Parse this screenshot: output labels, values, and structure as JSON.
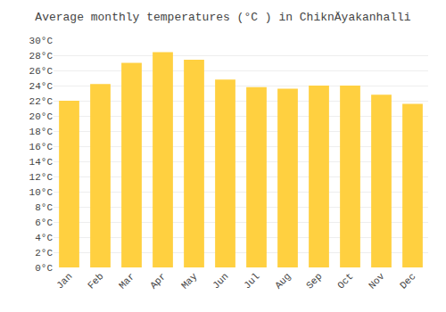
{
  "chart_data": {
    "type": "bar",
    "title": "Average monthly temperatures (°C ) in ChiknÄyakanhalli",
    "categories": [
      "Jan",
      "Feb",
      "Mar",
      "Apr",
      "May",
      "Jun",
      "Jul",
      "Aug",
      "Sep",
      "Oct",
      "Nov",
      "Dec"
    ],
    "values": [
      22.0,
      24.2,
      27.0,
      28.4,
      27.4,
      24.8,
      23.8,
      23.6,
      24.0,
      24.0,
      22.8,
      21.6
    ],
    "color": "#FFD040",
    "ylim": [
      0,
      30
    ],
    "yticks": [
      {
        "value": 0,
        "label": "0°C"
      },
      {
        "value": 2,
        "label": "2°C"
      },
      {
        "value": 4,
        "label": "4°C"
      },
      {
        "value": 6,
        "label": "6°C"
      },
      {
        "value": 8,
        "label": "8°C"
      },
      {
        "value": 10,
        "label": "10°C"
      },
      {
        "value": 12,
        "label": "12°C"
      },
      {
        "value": 14,
        "label": "14°C"
      },
      {
        "value": 16,
        "label": "16°C"
      },
      {
        "value": 18,
        "label": "18°C"
      },
      {
        "value": 20,
        "label": "20°C"
      },
      {
        "value": 22,
        "label": "22°C"
      },
      {
        "value": 24,
        "label": "24°C"
      },
      {
        "value": 26,
        "label": "26°C"
      },
      {
        "value": 28,
        "label": "28°C"
      },
      {
        "value": 30,
        "label": "30°C"
      }
    ],
    "grid": true
  }
}
